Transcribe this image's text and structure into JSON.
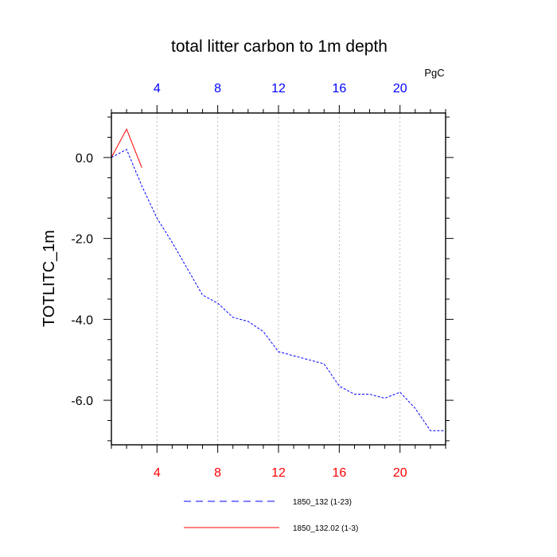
{
  "chart_data": {
    "type": "line",
    "title": "total litter carbon to 1m depth",
    "ylabel": "TOTLITC_1m",
    "unit": "PgC",
    "xlim": [
      1,
      23
    ],
    "ylim": [
      -7.1,
      1.1
    ],
    "x_ticks": [
      "4",
      "8",
      "12",
      "16",
      "20"
    ],
    "y_ticks": [
      "0.0",
      "-2.0",
      "-4.0",
      "-6.0"
    ],
    "top_tick_color": "#0000ff",
    "bottom_tick_color": "#ff0000",
    "grid": "vertical dotted at major x ticks",
    "series": [
      {
        "name": "1850_132 (1-23)",
        "color": "#0000ff",
        "style": "dashed",
        "x": [
          1,
          2,
          3,
          4,
          5,
          6,
          7,
          8,
          9,
          10,
          11,
          12,
          13,
          14,
          15,
          16,
          17,
          18,
          19,
          20,
          21,
          22,
          23
        ],
        "y": [
          0.0,
          0.2,
          -0.7,
          -1.5,
          -2.1,
          -2.75,
          -3.4,
          -3.6,
          -3.95,
          -4.05,
          -4.3,
          -4.8,
          -4.9,
          -5.0,
          -5.1,
          -5.65,
          -5.85,
          -5.85,
          -5.95,
          -5.8,
          -6.2,
          -6.75,
          -6.75
        ]
      },
      {
        "name": "1850_132.02 (1-3)",
        "color": "#ff0000",
        "style": "solid",
        "x": [
          1,
          2,
          3
        ],
        "y": [
          0.0,
          0.7,
          -0.25
        ]
      }
    ],
    "legend_position": "bottom-center"
  }
}
